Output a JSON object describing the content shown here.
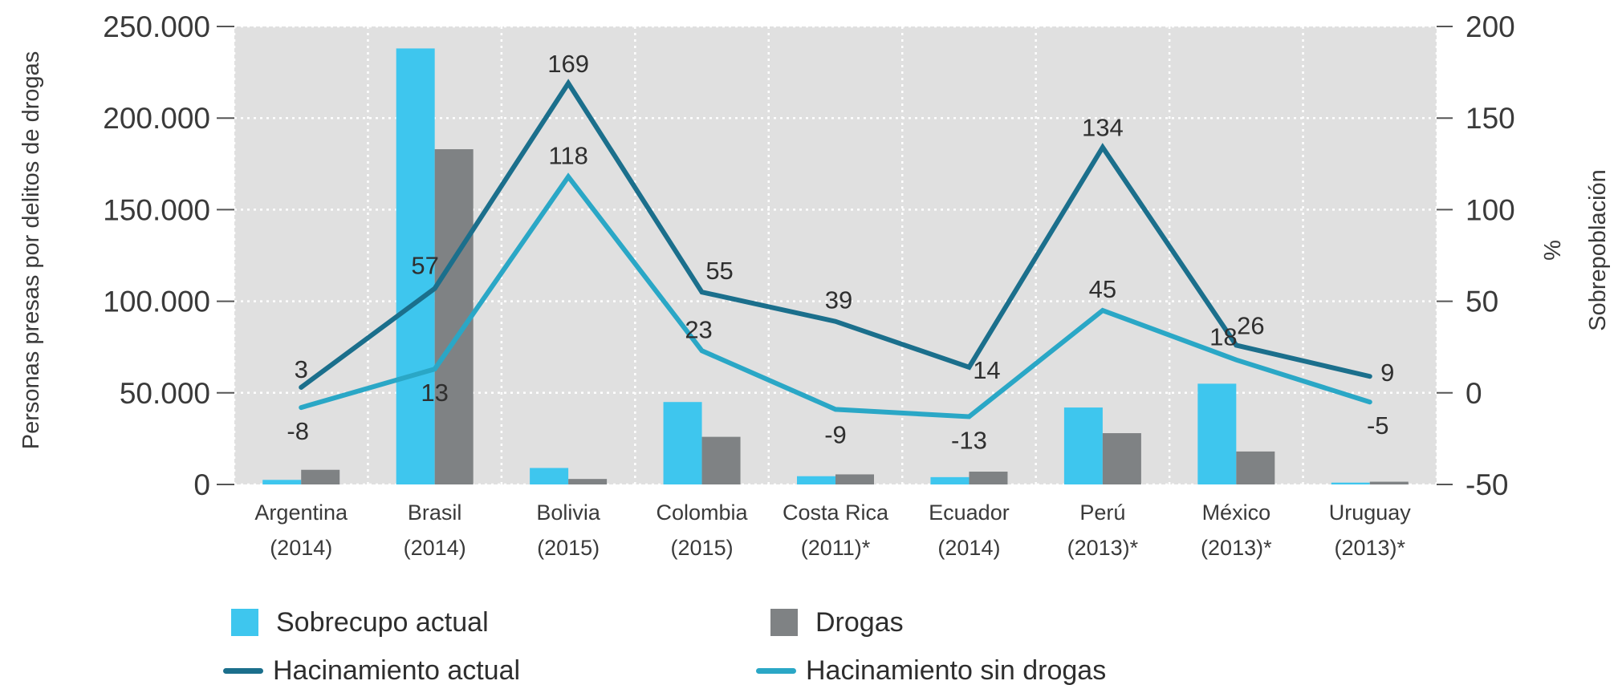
{
  "colors": {
    "sobrecupo": "#3ec6ee",
    "drogas": "#7f8284",
    "hacinamiento_actual": "#1b6f8c",
    "hacinamiento_sin_drogas": "#2aa7c6",
    "plot_bg": "#e0e0e0",
    "grid": "#ffffff"
  },
  "chart_data": {
    "type": "bar",
    "categories": [
      [
        "Argentina",
        "(2014)"
      ],
      [
        "Brasil",
        "(2014)"
      ],
      [
        "Bolivia",
        "(2015)"
      ],
      [
        "Colombia",
        "(2015)"
      ],
      [
        "Costa Rica",
        "(2011)*"
      ],
      [
        "Ecuador",
        "(2014)"
      ],
      [
        "Perú",
        "(2013)*"
      ],
      [
        "México",
        "(2013)*"
      ],
      [
        "Uruguay",
        "(2013)*"
      ]
    ],
    "ylabel_left": "Personas presas por delitos de drogas",
    "ylabel_right": [
      "%",
      "Sobrepoblación"
    ],
    "ylim_left": [
      0,
      250000
    ],
    "ylim_right": [
      -50,
      200
    ],
    "left_ticks": [
      "0",
      "50.000",
      "100.000",
      "150.000",
      "200.000",
      "250.000"
    ],
    "left_tick_values": [
      0,
      50000,
      100000,
      150000,
      200000,
      250000
    ],
    "right_ticks": [
      "-50",
      "0",
      "50",
      "100",
      "150",
      "200"
    ],
    "right_tick_values": [
      -50,
      0,
      50,
      100,
      150,
      200
    ],
    "grid": true,
    "bar_series": [
      {
        "name": "Sobrecupo actual",
        "values": [
          2500,
          238000,
          9000,
          45000,
          4500,
          4000,
          42000,
          55000,
          1000
        ]
      },
      {
        "name": "Drogas",
        "values": [
          8000,
          183000,
          3000,
          26000,
          5500,
          7000,
          28000,
          18000,
          1500
        ]
      }
    ],
    "line_series": [
      {
        "name": "Hacinamiento actual",
        "values": [
          3,
          57,
          169,
          55,
          39,
          14,
          134,
          26,
          9
        ],
        "labels": [
          "3",
          "57",
          "169",
          "55",
          "39",
          "14",
          "134",
          "26",
          "9"
        ]
      },
      {
        "name": "Hacinamiento sin drogas",
        "values": [
          -8,
          13,
          118,
          23,
          -9,
          -13,
          45,
          18,
          -5
        ],
        "labels": [
          "-8",
          "13",
          "118",
          "23",
          "-9",
          "-13",
          "45",
          "18",
          "-5"
        ]
      }
    ]
  },
  "legend": {
    "sobrecupo_label": "Sobrecupo actual",
    "drogas_label": "Drogas",
    "hac_actual_label": "Hacinamiento actual",
    "hac_sin_label": "Hacinamiento sin drogas"
  }
}
